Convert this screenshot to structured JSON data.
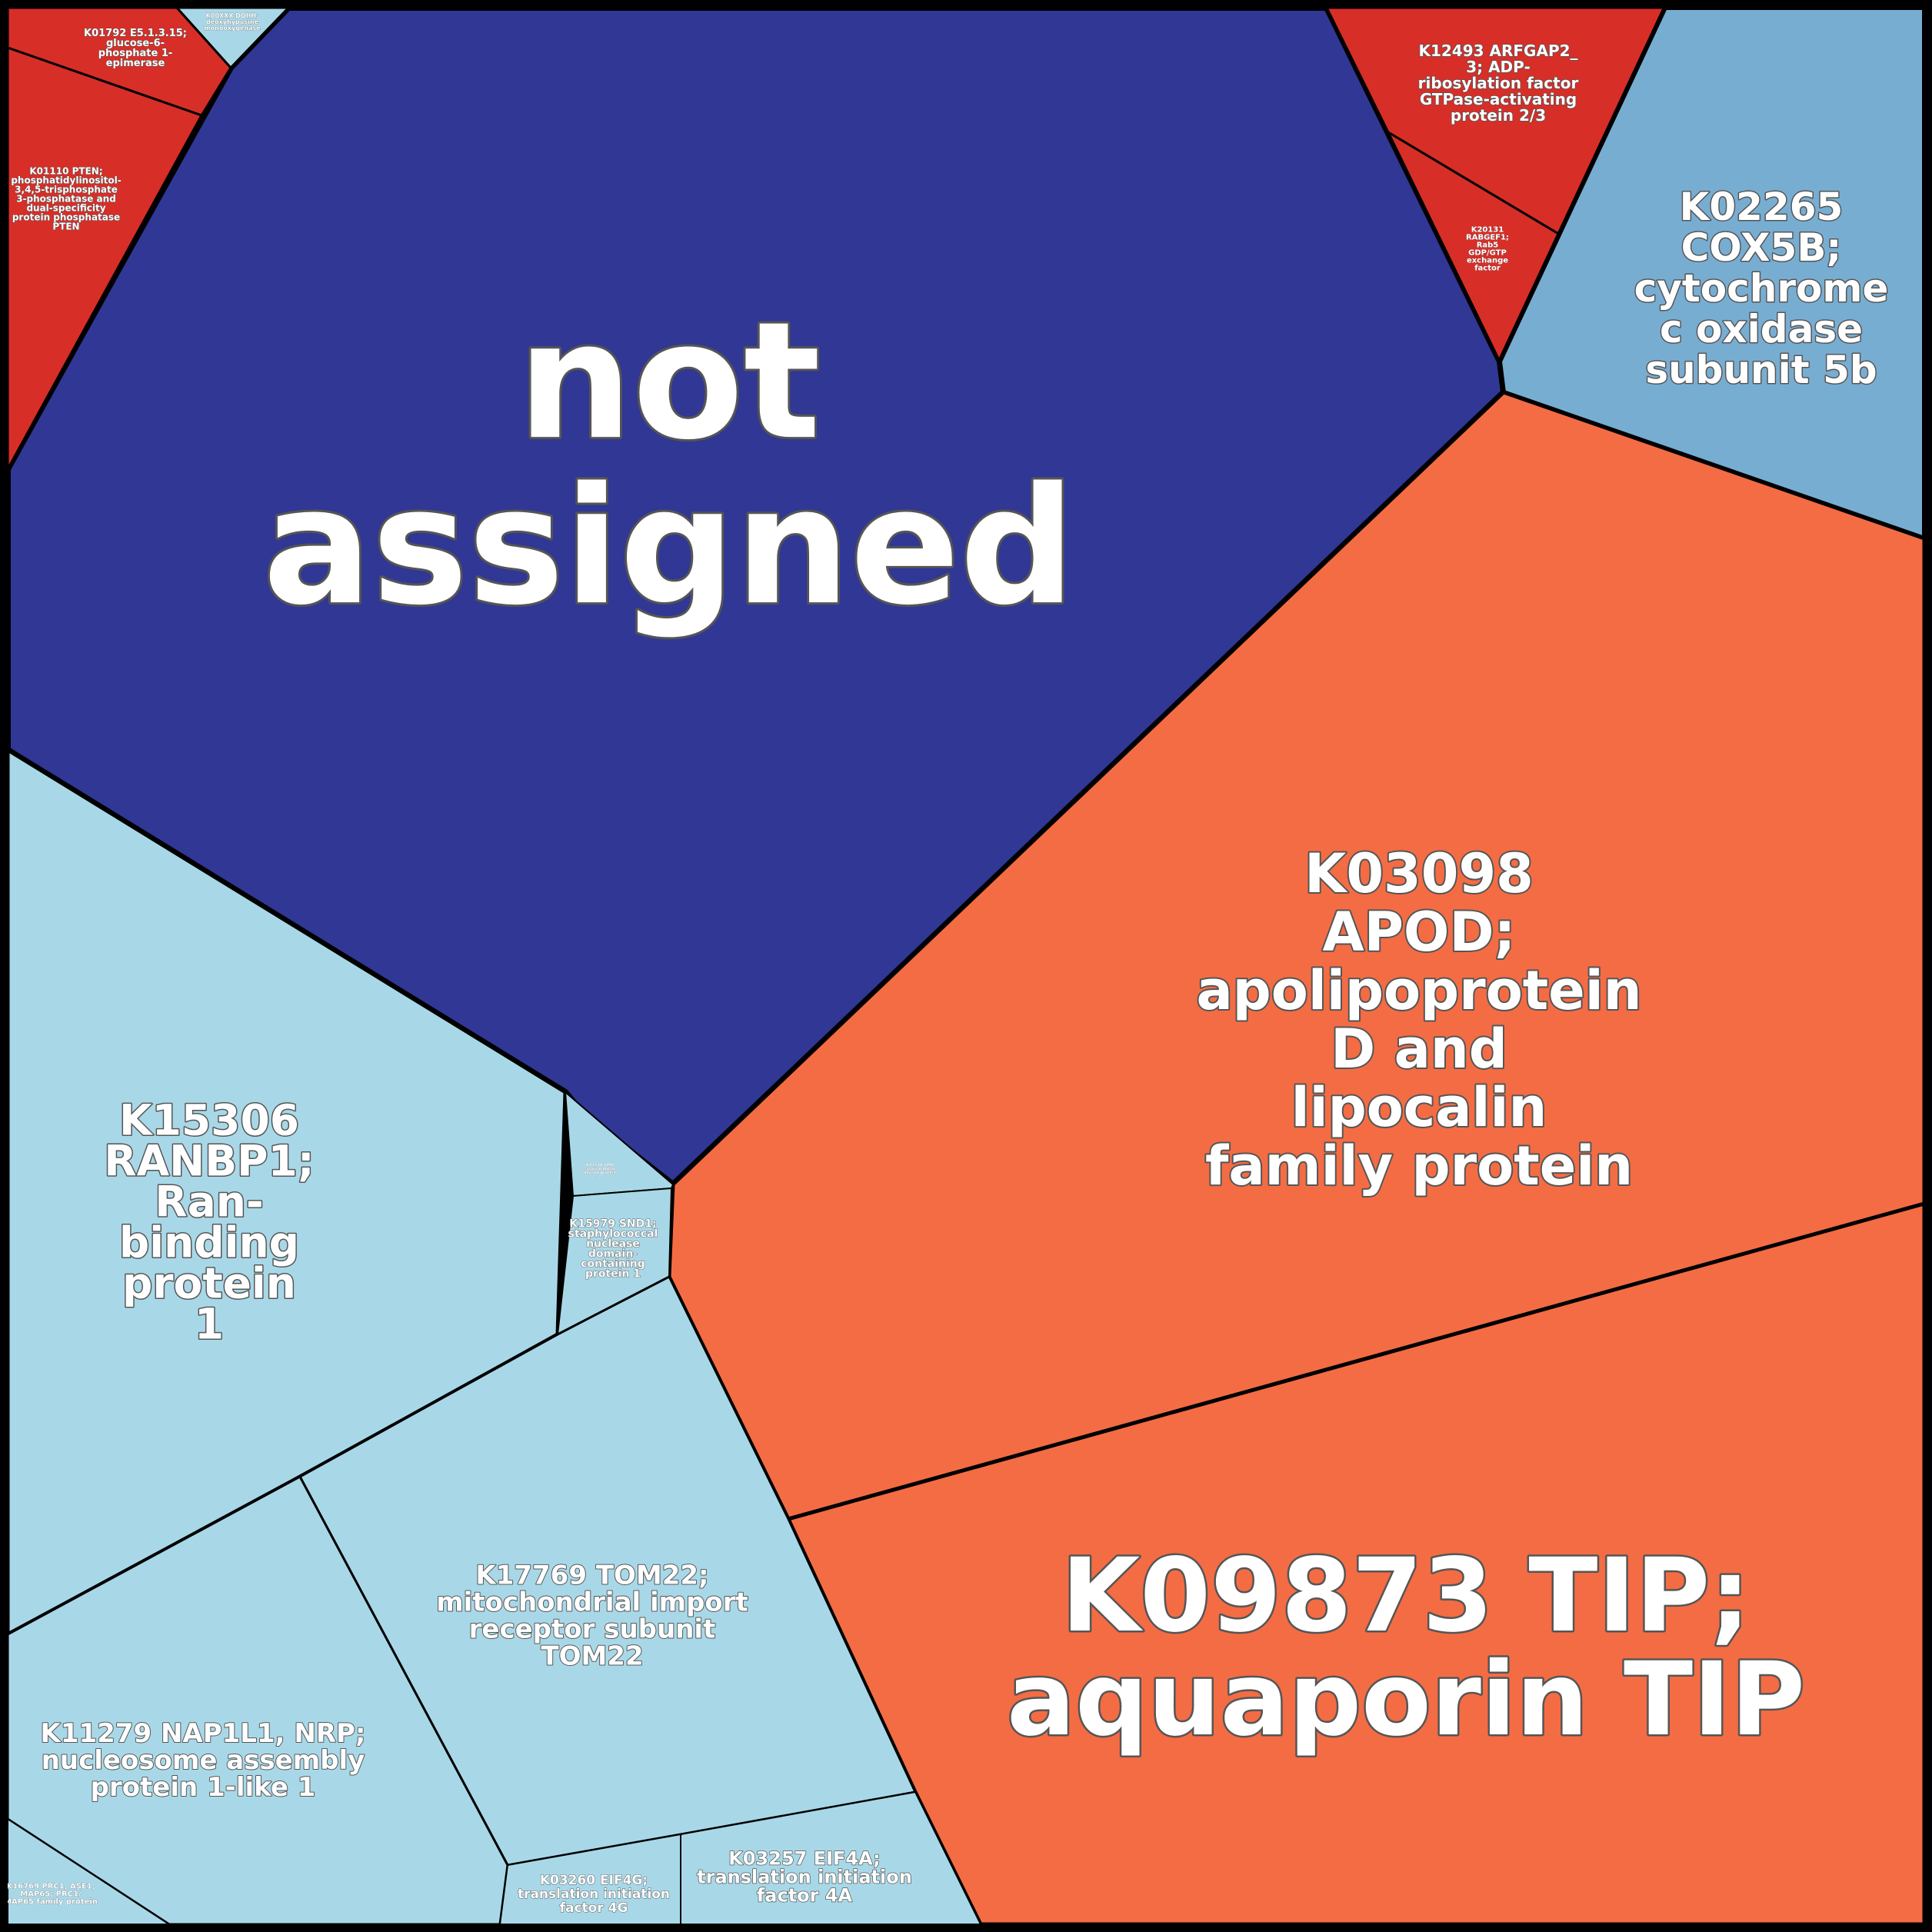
{
  "colors": {
    "navy": "#303795",
    "red": "#d72e28",
    "orange": "#f46c44",
    "steel_blue": "#78add2",
    "light_blue": "#a8d8e8",
    "border": "#000000"
  },
  "cells": [
    {
      "id": "not_assigned",
      "color": "navy",
      "lines": [
        "not",
        "assigned"
      ]
    },
    {
      "id": "k01792",
      "color": "red",
      "lines": [
        "K01792 E5.1.3.15;",
        "glucose-6-",
        "phosphate 1-",
        "epimerase"
      ]
    },
    {
      "id": "k00xxx_top",
      "color": "light_blue",
      "lines": [
        "K00XXX DOHH;",
        "deoxyhypusine",
        "monooxygenase"
      ]
    },
    {
      "id": "k01110",
      "color": "red",
      "lines": [
        "K01110 PTEN;",
        "phosphatidylinositol-",
        "3,4,5-trisphosphate",
        "3-phosphatase and",
        "dual-specificity",
        "protein phosphatase",
        "PTEN"
      ]
    },
    {
      "id": "k12493",
      "color": "red",
      "lines": [
        "K12493 ARFGAP2_",
        "3; ADP-",
        "ribosylation factor",
        "GTPase-activating",
        "protein 2/3"
      ]
    },
    {
      "id": "k20131",
      "color": "red",
      "lines": [
        "K20131",
        "RABGEF1;",
        "Rab5",
        "GDP/GTP",
        "exchange",
        "factor"
      ]
    },
    {
      "id": "k02265",
      "color": "steel_blue",
      "lines": [
        "K02265",
        "COX5B;",
        "cytochrome",
        "c oxidase",
        "subunit 5b"
      ]
    },
    {
      "id": "k03098",
      "color": "orange",
      "lines": [
        "K03098",
        "APOD;",
        "apolipoprotein",
        "D and",
        "lipocalin",
        "family protein"
      ]
    },
    {
      "id": "k09873",
      "color": "orange",
      "lines": [
        "K09873 TIP;",
        "aquaporin TIP"
      ]
    },
    {
      "id": "k15306",
      "color": "light_blue",
      "lines": [
        "K15306",
        "RANBP1;",
        "Ran-",
        "binding",
        "protein",
        "1"
      ]
    },
    {
      "id": "k_tiny_mid",
      "color": "light_blue",
      "lines": [
        "K04430 SMN",
        "survival motor",
        "neuron protein",
        "1"
      ]
    },
    {
      "id": "k15979",
      "color": "light_blue",
      "lines": [
        "K15979 SND1;",
        "staphylococcal",
        "nuclease",
        "domain-",
        "containing",
        "protein 1"
      ]
    },
    {
      "id": "k17769",
      "color": "light_blue",
      "lines": [
        "K17769 TOM22;",
        "mitochondrial import",
        "receptor subunit",
        "TOM22"
      ]
    },
    {
      "id": "k11279",
      "color": "light_blue",
      "lines": [
        "K11279 NAP1L1, NRP;",
        "nucleosome assembly",
        "protein 1-like 1"
      ]
    },
    {
      "id": "k16xxx",
      "color": "light_blue",
      "lines": [
        "K16769 PRC1, ASE1,",
        "MAP65; PRC1/",
        "MAP65 family protein"
      ]
    },
    {
      "id": "k03260",
      "color": "light_blue",
      "lines": [
        "K03260 EIF4G;",
        "translation initiation",
        "factor 4G"
      ]
    },
    {
      "id": "k03257",
      "color": "light_blue",
      "lines": [
        "K03257 EIF4A;",
        "translation initiation",
        "factor 4A"
      ]
    }
  ]
}
